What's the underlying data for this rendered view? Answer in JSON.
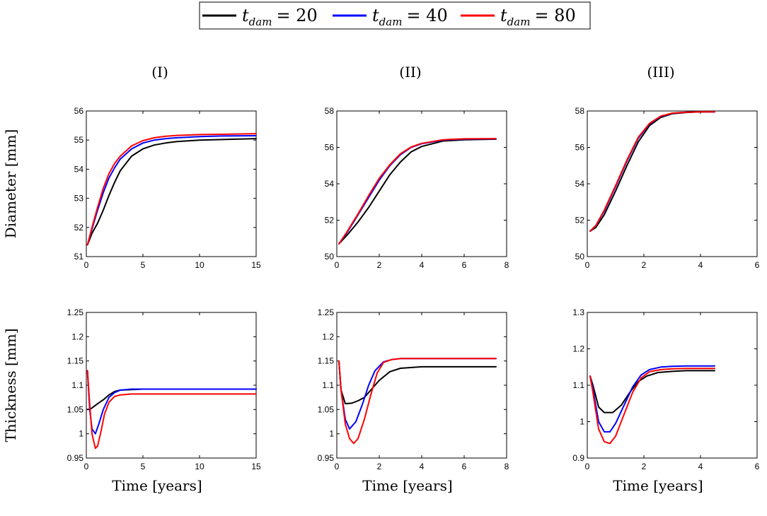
{
  "legend": {
    "items": [
      {
        "var": "t",
        "sub": "dam",
        "value": "= 20",
        "color": "#000000"
      },
      {
        "var": "t",
        "sub": "dam",
        "value": "= 40",
        "color": "#0000ff"
      },
      {
        "var": "t",
        "sub": "dam",
        "value": "= 80",
        "color": "#ff0000"
      }
    ]
  },
  "row_labels": [
    "Diameter [mm]",
    "Thickness [mm]"
  ],
  "column_titles": [
    "(I)",
    "(II)",
    "(III)"
  ],
  "xlabel": "Time [years]",
  "chart_data": [
    {
      "type": "line",
      "title": "(I)",
      "xlabel": "Time [years]",
      "ylabel": "Diameter [mm]",
      "xlim": [
        0,
        15
      ],
      "ylim": [
        51,
        56
      ],
      "xticks": [
        0,
        5,
        10,
        15
      ],
      "yticks": [
        51,
        52,
        53,
        54,
        55,
        56
      ],
      "series": [
        {
          "name": "t_dam = 20",
          "color": "#000000",
          "x": [
            0.1,
            0.5,
            1,
            1.5,
            2,
            2.5,
            3,
            4,
            5,
            6,
            7,
            8,
            10,
            12,
            15
          ],
          "y": [
            51.4,
            51.8,
            52.15,
            52.6,
            53.1,
            53.55,
            53.95,
            54.45,
            54.7,
            54.83,
            54.9,
            54.95,
            55.0,
            55.02,
            55.05
          ]
        },
        {
          "name": "t_dam = 40",
          "color": "#0000ff",
          "x": [
            0.1,
            0.5,
            1,
            1.5,
            2,
            2.5,
            3,
            4,
            5,
            6,
            7,
            8,
            10,
            12,
            15
          ],
          "y": [
            51.4,
            51.95,
            52.6,
            53.2,
            53.7,
            54.05,
            54.35,
            54.7,
            54.9,
            55.0,
            55.05,
            55.08,
            55.12,
            55.14,
            55.15
          ]
        },
        {
          "name": "t_dam = 80",
          "color": "#ff0000",
          "x": [
            0.1,
            0.5,
            1,
            1.5,
            2,
            2.5,
            3,
            4,
            5,
            6,
            7,
            8,
            10,
            12,
            15
          ],
          "y": [
            51.4,
            52.0,
            52.7,
            53.35,
            53.85,
            54.2,
            54.45,
            54.8,
            54.98,
            55.08,
            55.13,
            55.16,
            55.19,
            55.2,
            55.22
          ]
        }
      ]
    },
    {
      "type": "line",
      "title": "(II)",
      "xlabel": "Time [years]",
      "ylabel": "Diameter [mm]",
      "xlim": [
        0,
        8
      ],
      "ylim": [
        50,
        58
      ],
      "xticks": [
        0,
        2,
        4,
        6,
        8
      ],
      "yticks": [
        50,
        52,
        54,
        56,
        58
      ],
      "series": [
        {
          "name": "t_dam = 20",
          "color": "#000000",
          "x": [
            0.1,
            0.5,
            1,
            1.5,
            2,
            2.5,
            3,
            3.5,
            4,
            5,
            6,
            7.5
          ],
          "y": [
            50.7,
            51.2,
            51.9,
            52.7,
            53.6,
            54.5,
            55.2,
            55.75,
            56.05,
            56.35,
            56.42,
            56.45
          ]
        },
        {
          "name": "t_dam = 40",
          "color": "#0000ff",
          "x": [
            0.1,
            0.5,
            1,
            1.5,
            2,
            2.5,
            3,
            3.5,
            4,
            5,
            6,
            7.5
          ],
          "y": [
            50.7,
            51.35,
            52.3,
            53.25,
            54.2,
            55.0,
            55.6,
            56.0,
            56.2,
            56.4,
            56.45,
            56.47
          ]
        },
        {
          "name": "t_dam = 80",
          "color": "#ff0000",
          "x": [
            0.1,
            0.5,
            1,
            1.5,
            2,
            2.5,
            3,
            3.5,
            4,
            5,
            6,
            7.5
          ],
          "y": [
            50.7,
            51.4,
            52.35,
            53.35,
            54.3,
            55.05,
            55.65,
            56.02,
            56.22,
            56.42,
            56.47,
            56.48
          ]
        }
      ]
    },
    {
      "type": "line",
      "title": "(III)",
      "xlabel": "Time [years]",
      "ylabel": "Diameter [mm]",
      "xlim": [
        0,
        6
      ],
      "ylim": [
        50,
        58
      ],
      "xticks": [
        0,
        2,
        4,
        6
      ],
      "yticks": [
        50,
        52,
        54,
        56,
        58
      ],
      "series": [
        {
          "name": "t_dam = 20",
          "color": "#000000",
          "x": [
            0.1,
            0.3,
            0.6,
            1,
            1.4,
            1.8,
            2.2,
            2.6,
            3,
            3.5,
            4,
            4.5
          ],
          "y": [
            51.4,
            51.6,
            52.3,
            53.6,
            55.0,
            56.3,
            57.2,
            57.65,
            57.85,
            57.92,
            57.95,
            57.95
          ]
        },
        {
          "name": "t_dam = 40",
          "color": "#0000ff",
          "x": [
            0.1,
            0.3,
            0.6,
            1,
            1.4,
            1.8,
            2.2,
            2.6,
            3,
            3.5,
            4,
            4.5
          ],
          "y": [
            51.4,
            51.7,
            52.5,
            53.85,
            55.25,
            56.5,
            57.3,
            57.7,
            57.87,
            57.93,
            57.95,
            57.95
          ]
        },
        {
          "name": "t_dam = 80",
          "color": "#ff0000",
          "x": [
            0.1,
            0.3,
            0.6,
            1,
            1.4,
            1.8,
            2.2,
            2.6,
            3,
            3.5,
            4,
            4.5
          ],
          "y": [
            51.4,
            51.7,
            52.55,
            53.9,
            55.3,
            56.55,
            57.32,
            57.72,
            57.88,
            57.93,
            57.95,
            57.95
          ]
        }
      ]
    },
    {
      "type": "line",
      "title": "(I)",
      "xlabel": "Time [years]",
      "ylabel": "Thickness [mm]",
      "xlim": [
        0,
        15
      ],
      "ylim": [
        0.95,
        1.25
      ],
      "xticks": [
        0,
        5,
        10,
        15
      ],
      "yticks": [
        0.95,
        1,
        1.05,
        1.1,
        1.15,
        1.2,
        1.25
      ],
      "series": [
        {
          "name": "t_dam = 20",
          "color": "#000000",
          "x": [
            0.1,
            0.3,
            0.6,
            1,
            1.5,
            2,
            2.5,
            3,
            4,
            5,
            7,
            10,
            15
          ],
          "y": [
            1.05,
            1.05,
            1.055,
            1.062,
            1.07,
            1.08,
            1.087,
            1.09,
            1.091,
            1.092,
            1.092,
            1.092,
            1.092
          ]
        },
        {
          "name": "t_dam = 40",
          "color": "#0000ff",
          "x": [
            0.1,
            0.3,
            0.5,
            0.8,
            1.1,
            1.5,
            2,
            2.5,
            3,
            4,
            5,
            7,
            10,
            15
          ],
          "y": [
            1.13,
            1.05,
            1.01,
            1.0,
            1.02,
            1.05,
            1.075,
            1.085,
            1.09,
            1.092,
            1.092,
            1.092,
            1.092,
            1.092
          ]
        },
        {
          "name": "t_dam = 80",
          "color": "#ff0000",
          "x": [
            0.1,
            0.3,
            0.5,
            0.8,
            1,
            1.3,
            1.6,
            2,
            2.5,
            3,
            4,
            5,
            7,
            10,
            15
          ],
          "y": [
            1.13,
            1.06,
            1.0,
            0.97,
            0.975,
            1.005,
            1.04,
            1.065,
            1.077,
            1.08,
            1.082,
            1.082,
            1.082,
            1.082,
            1.082
          ]
        }
      ]
    },
    {
      "type": "line",
      "title": "(II)",
      "xlabel": "Time [years]",
      "ylabel": "Thickness [mm]",
      "xlim": [
        0,
        8
      ],
      "ylim": [
        0.95,
        1.25
      ],
      "xticks": [
        0,
        2,
        4,
        6,
        8
      ],
      "yticks": [
        0.95,
        1,
        1.05,
        1.1,
        1.15,
        1.2,
        1.25
      ],
      "series": [
        {
          "name": "t_dam = 20",
          "color": "#000000",
          "x": [
            0.1,
            0.2,
            0.4,
            0.7,
            1,
            1.3,
            1.6,
            2,
            2.5,
            3,
            4,
            5,
            6,
            7.5
          ],
          "y": [
            1.15,
            1.09,
            1.062,
            1.063,
            1.068,
            1.075,
            1.09,
            1.11,
            1.128,
            1.135,
            1.138,
            1.138,
            1.138,
            1.138
          ]
        },
        {
          "name": "t_dam = 40",
          "color": "#0000ff",
          "x": [
            0.1,
            0.2,
            0.4,
            0.6,
            0.9,
            1.2,
            1.5,
            1.8,
            2.2,
            2.6,
            3,
            4,
            5,
            6,
            7.5
          ],
          "y": [
            1.15,
            1.09,
            1.03,
            1.01,
            1.025,
            1.06,
            1.1,
            1.13,
            1.148,
            1.153,
            1.155,
            1.155,
            1.155,
            1.155,
            1.155
          ]
        },
        {
          "name": "t_dam = 80",
          "color": "#ff0000",
          "x": [
            0.1,
            0.2,
            0.4,
            0.6,
            0.8,
            1,
            1.3,
            1.6,
            1.9,
            2.2,
            2.6,
            3,
            4,
            5,
            6,
            7.5
          ],
          "y": [
            1.15,
            1.09,
            1.02,
            0.99,
            0.98,
            0.99,
            1.03,
            1.08,
            1.125,
            1.147,
            1.153,
            1.155,
            1.155,
            1.155,
            1.155,
            1.155
          ]
        }
      ]
    },
    {
      "type": "line",
      "title": "(III)",
      "xlabel": "Time [years]",
      "ylabel": "Thickness [mm]",
      "xlim": [
        0,
        6
      ],
      "ylim": [
        0.9,
        1.3
      ],
      "xticks": [
        0,
        2,
        4,
        6
      ],
      "yticks": [
        0.9,
        1,
        1.1,
        1.2,
        1.3
      ],
      "series": [
        {
          "name": "t_dam = 20",
          "color": "#000000",
          "x": [
            0.1,
            0.2,
            0.4,
            0.6,
            0.9,
            1.2,
            1.5,
            1.8,
            2.1,
            2.5,
            3,
            3.5,
            4,
            4.5
          ],
          "y": [
            1.125,
            1.1,
            1.04,
            1.025,
            1.025,
            1.045,
            1.08,
            1.11,
            1.125,
            1.135,
            1.138,
            1.14,
            1.14,
            1.14
          ]
        },
        {
          "name": "t_dam = 40",
          "color": "#0000ff",
          "x": [
            0.1,
            0.2,
            0.4,
            0.6,
            0.8,
            1,
            1.3,
            1.6,
            1.9,
            2.2,
            2.6,
            3,
            3.5,
            4,
            4.5
          ],
          "y": [
            1.125,
            1.09,
            1.0,
            0.972,
            0.972,
            0.995,
            1.045,
            1.095,
            1.128,
            1.143,
            1.15,
            1.152,
            1.153,
            1.153,
            1.153
          ]
        },
        {
          "name": "t_dam = 80",
          "color": "#ff0000",
          "x": [
            0.1,
            0.2,
            0.4,
            0.6,
            0.8,
            1,
            1.3,
            1.6,
            1.9,
            2.2,
            2.6,
            3,
            3.5,
            4,
            4.5
          ],
          "y": [
            1.125,
            1.08,
            0.98,
            0.945,
            0.94,
            0.96,
            1.02,
            1.08,
            1.12,
            1.137,
            1.143,
            1.145,
            1.146,
            1.146,
            1.146
          ]
        }
      ]
    }
  ]
}
